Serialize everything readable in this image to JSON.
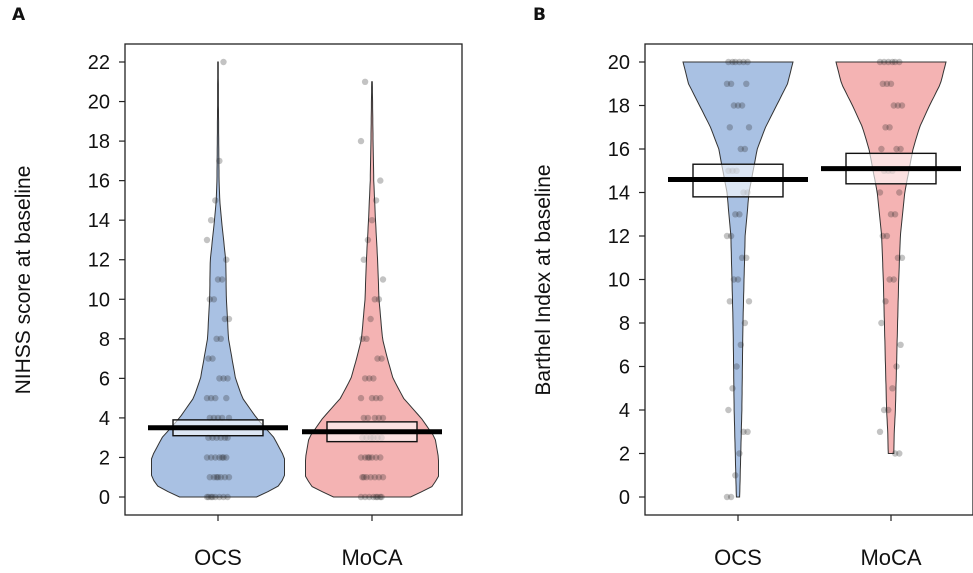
{
  "chart_data": [
    {
      "panel": "A",
      "type": "pirate",
      "ylabel": "NIHSS score at baseline",
      "ylim": [
        0,
        22
      ],
      "y_ticks": [
        0,
        2,
        4,
        6,
        8,
        10,
        12,
        14,
        16,
        18,
        20,
        22
      ],
      "categories": [
        "OCS",
        "MoCA"
      ],
      "series": [
        {
          "category": "OCS",
          "color": "#a9c1e3",
          "mean": 3.5,
          "ci": [
            3.1,
            3.9
          ],
          "min": 0,
          "max": 22,
          "density": [
            [
              0,
              0.55
            ],
            [
              0.5,
              0.85
            ],
            [
              1,
              0.95
            ],
            [
              2,
              0.95
            ],
            [
              3,
              0.8
            ],
            [
              4,
              0.55
            ],
            [
              5,
              0.35
            ],
            [
              6,
              0.25
            ],
            [
              8,
              0.15
            ],
            [
              10,
              0.12
            ],
            [
              12,
              0.11
            ],
            [
              13,
              0.08
            ],
            [
              14,
              0.05
            ],
            [
              15,
              0.025
            ],
            [
              16,
              0.015
            ],
            [
              18,
              0.01
            ],
            [
              20,
              0.006
            ],
            [
              22,
              0.004
            ]
          ],
          "points": [
            0,
            0,
            0,
            0,
            0,
            0,
            0,
            0,
            1,
            1,
            1,
            1,
            1,
            1,
            1,
            2,
            2,
            2,
            2,
            2,
            2,
            2,
            3,
            3,
            3,
            3,
            3,
            3,
            4,
            4,
            4,
            4,
            4,
            5,
            5,
            5,
            5,
            6,
            6,
            6,
            7,
            7,
            8,
            8,
            9,
            9,
            10,
            10,
            11,
            11,
            12,
            13,
            14,
            15,
            17,
            22
          ]
        },
        {
          "category": "MoCA",
          "color": "#f4b3b3",
          "mean": 3.3,
          "ci": [
            2.8,
            3.8
          ],
          "min": 0,
          "max": 21,
          "density": [
            [
              0,
              0.55
            ],
            [
              0.5,
              0.85
            ],
            [
              1,
              0.95
            ],
            [
              2,
              0.95
            ],
            [
              3,
              0.9
            ],
            [
              4,
              0.7
            ],
            [
              5,
              0.45
            ],
            [
              6,
              0.3
            ],
            [
              7,
              0.22
            ],
            [
              8,
              0.15
            ],
            [
              10,
              0.1
            ],
            [
              12,
              0.08
            ],
            [
              14,
              0.05
            ],
            [
              16,
              0.025
            ],
            [
              18,
              0.015
            ],
            [
              20,
              0.008
            ],
            [
              21,
              0.004
            ]
          ],
          "points": [
            0,
            0,
            0,
            0,
            0,
            0,
            0,
            0,
            1,
            1,
            1,
            1,
            1,
            1,
            1,
            2,
            2,
            2,
            2,
            2,
            2,
            2,
            3,
            3,
            3,
            3,
            3,
            3,
            4,
            4,
            4,
            4,
            4,
            5,
            5,
            5,
            5,
            6,
            6,
            6,
            7,
            7,
            8,
            8,
            9,
            10,
            10,
            11,
            12,
            13,
            14,
            15,
            16,
            18,
            21
          ]
        }
      ]
    },
    {
      "panel": "B",
      "type": "pirate",
      "ylabel": "Barthel Index at baseline",
      "ylim": [
        0,
        20
      ],
      "y_ticks": [
        0,
        2,
        4,
        6,
        8,
        10,
        12,
        14,
        16,
        18,
        20
      ],
      "categories": [
        "OCS",
        "MoCA"
      ],
      "series": [
        {
          "category": "OCS",
          "color": "#a9c1e3",
          "mean": 14.6,
          "ci": [
            13.8,
            15.3
          ],
          "min": 0,
          "max": 20,
          "density": [
            [
              0,
              0.03
            ],
            [
              1,
              0.04
            ],
            [
              2,
              0.05
            ],
            [
              4,
              0.07
            ],
            [
              6,
              0.08
            ],
            [
              8,
              0.09
            ],
            [
              10,
              0.11
            ],
            [
              12,
              0.13
            ],
            [
              14,
              0.2
            ],
            [
              16,
              0.35
            ],
            [
              17,
              0.5
            ],
            [
              18,
              0.7
            ],
            [
              19,
              0.9
            ],
            [
              20,
              1.0
            ]
          ],
          "points": [
            0,
            0,
            1,
            2,
            3,
            3,
            4,
            5,
            6,
            7,
            8,
            9,
            9,
            10,
            10,
            11,
            11,
            12,
            12,
            13,
            13,
            14,
            14,
            15,
            15,
            15,
            16,
            16,
            17,
            17,
            18,
            18,
            18,
            19,
            19,
            19,
            20,
            20,
            20,
            20,
            20,
            20
          ]
        },
        {
          "category": "MoCA",
          "color": "#f4b3b3",
          "mean": 15.1,
          "ci": [
            14.4,
            15.8
          ],
          "min": 2,
          "max": 20,
          "density": [
            [
              2,
              0.05
            ],
            [
              3,
              0.06
            ],
            [
              4,
              0.08
            ],
            [
              6,
              0.1
            ],
            [
              8,
              0.12
            ],
            [
              10,
              0.14
            ],
            [
              12,
              0.17
            ],
            [
              14,
              0.25
            ],
            [
              16,
              0.4
            ],
            [
              17,
              0.52
            ],
            [
              18,
              0.7
            ],
            [
              19,
              0.9
            ],
            [
              20,
              1.0
            ]
          ],
          "points": [
            2,
            2,
            3,
            4,
            4,
            5,
            6,
            7,
            8,
            9,
            10,
            10,
            11,
            11,
            12,
            12,
            13,
            13,
            14,
            14,
            15,
            15,
            15,
            16,
            16,
            16,
            17,
            17,
            18,
            18,
            18,
            19,
            19,
            19,
            20,
            20,
            20,
            20,
            20,
            20
          ]
        }
      ]
    }
  ]
}
